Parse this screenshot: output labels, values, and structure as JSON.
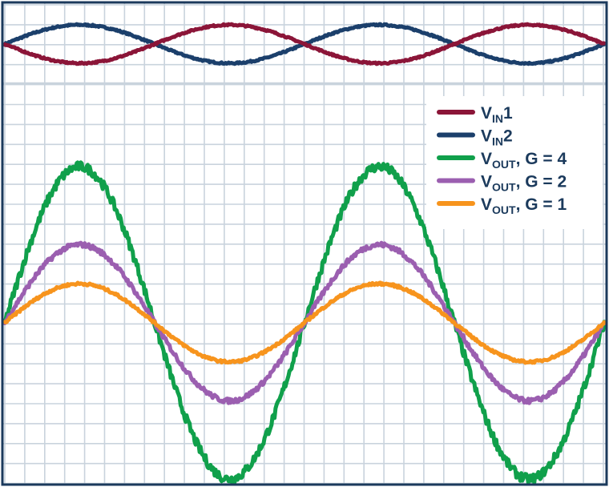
{
  "chart_data": {
    "type": "line",
    "title": "",
    "xlabel": "",
    "ylabel": "",
    "grid": true,
    "legend_position": "top-right",
    "x_range": [
      0,
      2.0
    ],
    "panels": [
      {
        "id": "inputs",
        "y_range": [
          -1,
          1
        ],
        "series": [
          "vin1",
          "vin2"
        ]
      },
      {
        "id": "outputs",
        "y_range": [
          -4.1,
          4.1
        ],
        "series": [
          "vout_g4",
          "vout_g2",
          "vout_g1"
        ]
      }
    ],
    "series": [
      {
        "key": "vin1",
        "label_main": "V",
        "label_sub": "IN",
        "label_tail": "1",
        "color": "#8b1538",
        "amplitude": 0.5,
        "phase_sign": -1,
        "cycles": 2,
        "panel": "inputs"
      },
      {
        "key": "vin2",
        "label_main": "V",
        "label_sub": "IN",
        "label_tail": "2",
        "color": "#1b3f6b",
        "amplitude": 0.5,
        "phase_sign": 1,
        "cycles": 2,
        "panel": "inputs"
      },
      {
        "key": "vout_g4",
        "label_main": "V",
        "label_sub": "OUT",
        "label_tail": ", G = 4",
        "color": "#10a04b",
        "amplitude": 4,
        "phase_sign": 1,
        "cycles": 2,
        "panel": "outputs"
      },
      {
        "key": "vout_g2",
        "label_main": "V",
        "label_sub": "OUT",
        "label_tail": ", G = 2",
        "color": "#9b5fb0",
        "amplitude": 2,
        "phase_sign": 1,
        "cycles": 2,
        "panel": "outputs"
      },
      {
        "key": "vout_g1",
        "label_main": "V",
        "label_sub": "OUT",
        "label_tail": ", G = 1",
        "color": "#f7941d",
        "amplitude": 1,
        "phase_sign": 1,
        "cycles": 2,
        "panel": "outputs"
      }
    ]
  },
  "colors": {
    "frame": "#1b3a5c",
    "grid": "#c9d3dd",
    "legend_text": "#1b3a5c",
    "background": "#ffffff"
  }
}
